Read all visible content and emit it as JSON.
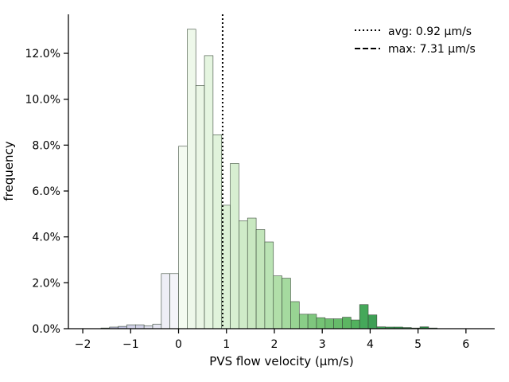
{
  "chart_data": {
    "type": "bar",
    "subtype": "histogram",
    "xlabel": "PVS flow velocity (µm/s)",
    "ylabel": "frequency",
    "xlim": [
      -2.3,
      6.6
    ],
    "ylim": [
      0,
      0.137
    ],
    "x_ticks": [
      -2,
      -1,
      0,
      1,
      2,
      3,
      4,
      5,
      6
    ],
    "x_tick_labels": [
      "−2",
      "−1",
      "0",
      "1",
      "2",
      "3",
      "4",
      "5",
      "6"
    ],
    "y_ticks": [
      0,
      0.02,
      0.04,
      0.06,
      0.08,
      0.1,
      0.12
    ],
    "y_tick_labels": [
      "0.0%",
      "2.0%",
      "4.0%",
      "6.0%",
      "8.0%",
      "10.0%",
      "12.0%"
    ],
    "bin_width": 0.18,
    "bin_left_edges": [
      -1.62,
      -1.44,
      -1.26,
      -1.08,
      -0.9,
      -0.72,
      -0.54,
      -0.36,
      -0.18,
      0.0,
      0.18,
      0.36,
      0.54,
      0.72,
      0.9,
      1.08,
      1.26,
      1.44,
      1.62,
      1.8,
      1.98,
      2.16,
      2.34,
      2.52,
      2.7,
      2.88,
      3.06,
      3.24,
      3.42,
      3.6,
      3.78,
      3.96,
      4.14,
      4.32,
      4.5,
      4.68,
      4.86,
      5.04,
      5.22
    ],
    "values": [
      0.0003,
      0.0007,
      0.001,
      0.0017,
      0.0017,
      0.0013,
      0.002,
      0.024,
      0.024,
      0.0795,
      0.1305,
      0.106,
      0.119,
      0.0845,
      0.0538,
      0.072,
      0.047,
      0.0482,
      0.0432,
      0.0378,
      0.023,
      0.022,
      0.0118,
      0.0063,
      0.0063,
      0.0048,
      0.0043,
      0.0043,
      0.005,
      0.0038,
      0.0105,
      0.006,
      0.0008,
      0.0007,
      0.0007,
      0.0005,
      0.0003,
      0.0008,
      0.0003
    ],
    "bar_colors": [
      "#bcbddc",
      "#bcbddc",
      "#bcbddc",
      "#d0d0e6",
      "#d0d0e6",
      "#e0e0ee",
      "#e6e6f2",
      "#eeeef6",
      "#f4f4f9",
      "#f4fbf1",
      "#eef8ea",
      "#eaf6e5",
      "#e5f5e0",
      "#e0f3db",
      "#dcf1d6",
      "#d7efd1",
      "#cfebc8",
      "#c9e8c1",
      "#c2e5ba",
      "#bae3b4",
      "#b1dfa9",
      "#a5da9f",
      "#98d493",
      "#8ace88",
      "#7fc77e",
      "#75c375",
      "#6dbe6f",
      "#66bb6a",
      "#5cb562",
      "#52b15e",
      "#45a85a",
      "#3e9f55",
      "#3a9a51",
      "#359650",
      "#30914c",
      "#2e8c48",
      "#2b8645",
      "#2a8242",
      "#287e40"
    ],
    "lines": [
      {
        "label": "avg: 0.92 µm/s",
        "x": 0.92,
        "style": "dotted"
      },
      {
        "label": "max: 7.31 µm/s",
        "x": 7.31,
        "style": "dashed"
      }
    ],
    "legend_position": "top-right",
    "grid": false
  }
}
